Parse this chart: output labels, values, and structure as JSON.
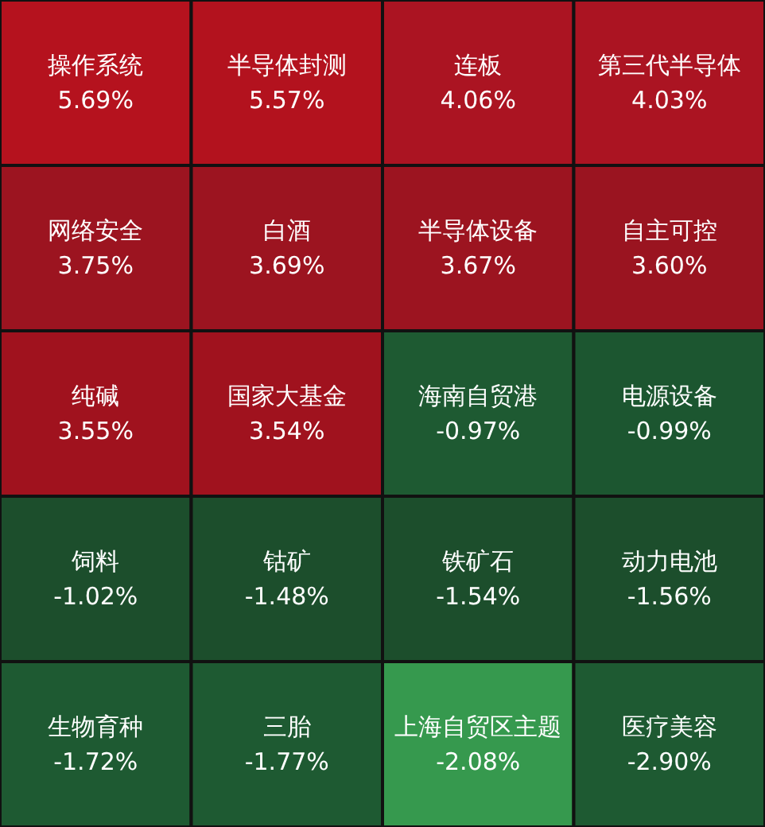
{
  "chart_data": {
    "type": "other",
    "categories": [
      "操作系统",
      "半导体封测",
      "连板",
      "第三代半导体",
      "网络安全",
      "白酒",
      "半导体设备",
      "自主可控",
      "纯碱",
      "国家大基金",
      "海南自贸港",
      "电源设备",
      "饲料",
      "钴矿",
      "铁矿石",
      "动力电池",
      "生物育种",
      "三胎",
      "上海自贸区主题",
      "医疗美容"
    ],
    "values": [
      5.69,
      5.57,
      4.06,
      4.03,
      3.75,
      3.69,
      3.67,
      3.6,
      3.55,
      3.54,
      -0.97,
      -0.99,
      -1.02,
      -1.48,
      -1.54,
      -1.56,
      -1.72,
      -1.77,
      -2.08,
      -2.9
    ],
    "value_labels": [
      "5.69%",
      "5.57%",
      "4.06%",
      "4.03%",
      "3.75%",
      "3.69%",
      "3.67%",
      "3.60%",
      "3.55%",
      "3.54%",
      "-0.97%",
      "-0.99%",
      "-1.02%",
      "-1.48%",
      "-1.54%",
      "-1.56%",
      "-1.72%",
      "-1.77%",
      "-2.08%",
      "-2.90%"
    ],
    "colors": [
      "#b5121e",
      "#b3121e",
      "#ab1422",
      "#ab1422",
      "#9c1420",
      "#9c1420",
      "#9c1420",
      "#9a1420",
      "#a0121e",
      "#a0121e",
      "#1e5a32",
      "#1c5630",
      "#1c4e2c",
      "#1c4e2c",
      "#1c4e2c",
      "#1c4e2c",
      "#1e5a32",
      "#1e5a32",
      "#36994e",
      "#1e5a32"
    ]
  }
}
